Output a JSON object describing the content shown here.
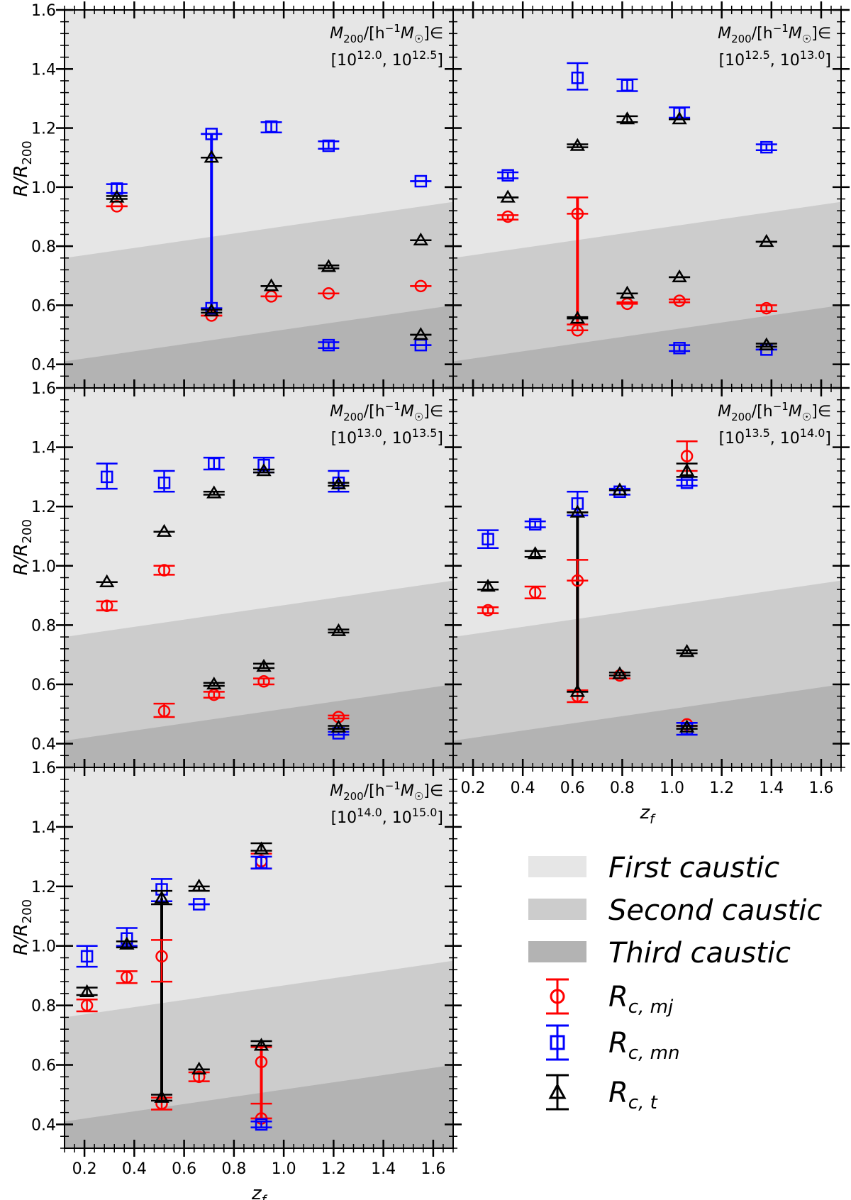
{
  "colors": {
    "first_caustic": "#e6e6e6",
    "second_caustic": "#cccccc",
    "third_caustic": "#b3b3b3",
    "mj": "#ff0000",
    "mn": "#0000ff",
    "t": "#000000"
  },
  "legend": {
    "entries": [
      {
        "label": "First caustic",
        "kind": "patch",
        "color": "#e6e6e6"
      },
      {
        "label": "Second caustic",
        "kind": "patch",
        "color": "#cccccc"
      },
      {
        "label": "Third caustic",
        "kind": "patch",
        "color": "#b3b3b3"
      },
      {
        "label_main": "R",
        "label_sub": "c, mj",
        "kind": "marker",
        "marker": "circle",
        "color": "#ff0000"
      },
      {
        "label_main": "R",
        "label_sub": "c, mn",
        "kind": "marker",
        "marker": "square",
        "color": "#0000ff"
      },
      {
        "label_main": "R",
        "label_sub": "c, t",
        "kind": "marker",
        "marker": "triangle",
        "color": "#000000"
      }
    ]
  },
  "chart_data": [
    {
      "type": "scatter",
      "ylabel_main": "R/R",
      "ylabel_sub": "200",
      "xlabel": "",
      "xlim": [
        0.12,
        1.68
      ],
      "ylim": [
        0.32,
        1.6
      ],
      "yticks": [
        "0.4",
        "0.6",
        "0.8",
        "1.0",
        "1.2",
        "1.4",
        "1.6"
      ],
      "xticks": [],
      "annotation_line1": "M200/[h⁻¹M☉]∈",
      "annotation_line2": "[10^12.0, 10^12.5]",
      "bands": {
        "first_upper": [
          0.76,
          0.95
        ],
        "second_upper": [
          0.41,
          0.6
        ]
      },
      "series": [
        {
          "key": "mj",
          "marker": "circle",
          "points": [
            [
              0.33,
              0.935,
              0.935,
              0.935
            ],
            [
              0.71,
              0.565,
              0.565,
              0.565
            ],
            [
              0.95,
              0.63,
              0.63,
              0.63
            ],
            [
              1.18,
              0.64,
              0.64,
              0.64
            ],
            [
              1.55,
              0.665,
              0.665,
              0.665
            ]
          ]
        },
        {
          "key": "mn",
          "marker": "square",
          "points": [
            [
              0.33,
              0.995,
              0.98,
              1.01
            ],
            [
              0.71,
              1.18,
              1.18,
              1.18
            ],
            [
              0.71,
              0.59,
              0.59,
              0.59
            ],
            [
              0.95,
              1.205,
              1.185,
              1.22
            ],
            [
              1.18,
              1.14,
              1.13,
              1.155
            ],
            [
              1.18,
              0.465,
              0.455,
              0.475
            ],
            [
              1.55,
              1.02,
              1.02,
              1.02
            ],
            [
              1.55,
              0.465,
              0.465,
              0.465
            ]
          ]
        },
        {
          "key": "t",
          "marker": "triangle",
          "points": [
            [
              0.33,
              0.965,
              0.96,
              0.97
            ],
            [
              0.71,
              1.1,
              1.1,
              1.1
            ],
            [
              0.71,
              0.58,
              0.575,
              0.585
            ],
            [
              0.95,
              0.665,
              0.665,
              0.665
            ],
            [
              1.18,
              0.73,
              0.725,
              0.735
            ],
            [
              1.55,
              0.82,
              0.82,
              0.82
            ],
            [
              1.55,
              0.5,
              0.5,
              0.5
            ]
          ]
        }
      ],
      "vlines": [
        {
          "key": "mn",
          "x": 0.71,
          "y0": 0.59,
          "y1": 1.18
        }
      ]
    },
    {
      "type": "scatter",
      "ylabel_main": "",
      "ylabel_sub": "",
      "xlabel": "",
      "xlim": [
        0.12,
        1.68
      ],
      "ylim": [
        0.32,
        1.6
      ],
      "yticks": [],
      "xticks": [],
      "annotation_line1": "M200/[h⁻¹M☉]∈",
      "annotation_line2": "[10^12.5, 10^13.0]",
      "bands": {
        "first_upper": [
          0.76,
          0.95
        ],
        "second_upper": [
          0.41,
          0.6
        ]
      },
      "series": [
        {
          "key": "mj",
          "marker": "circle",
          "points": [
            [
              0.34,
              0.9,
              0.89,
              0.905
            ],
            [
              0.62,
              0.91,
              0.91,
              0.965
            ],
            [
              0.62,
              0.515,
              0.515,
              0.535
            ],
            [
              0.82,
              0.605,
              0.605,
              0.61
            ],
            [
              1.03,
              0.615,
              0.61,
              0.62
            ],
            [
              1.38,
              0.59,
              0.58,
              0.6
            ]
          ]
        },
        {
          "key": "mn",
          "marker": "square",
          "points": [
            [
              0.34,
              1.04,
              1.03,
              1.05
            ],
            [
              0.62,
              1.37,
              1.33,
              1.42
            ],
            [
              0.82,
              1.345,
              1.325,
              1.365
            ],
            [
              1.03,
              1.25,
              1.235,
              1.27
            ],
            [
              1.03,
              0.455,
              0.445,
              0.465
            ],
            [
              1.38,
              1.135,
              1.125,
              1.145
            ],
            [
              1.38,
              0.45,
              0.45,
              0.45
            ]
          ]
        },
        {
          "key": "t",
          "marker": "triangle",
          "points": [
            [
              0.34,
              0.965,
              0.965,
              0.965
            ],
            [
              0.62,
              1.14,
              1.135,
              1.145
            ],
            [
              0.62,
              0.555,
              0.555,
              0.56
            ],
            [
              0.82,
              1.23,
              1.22,
              1.24
            ],
            [
              0.82,
              0.64,
              0.64,
              0.64
            ],
            [
              1.03,
              1.23,
              1.23,
              1.23
            ],
            [
              1.03,
              0.695,
              0.695,
              0.695
            ],
            [
              1.38,
              0.815,
              0.815,
              0.815
            ],
            [
              1.38,
              0.465,
              0.46,
              0.47
            ]
          ]
        }
      ],
      "vlines": [
        {
          "key": "mj",
          "x": 0.62,
          "y0": 0.535,
          "y1": 0.965
        }
      ]
    },
    {
      "type": "scatter",
      "ylabel_main": "R/R",
      "ylabel_sub": "200",
      "xlabel": "",
      "xlim": [
        0.12,
        1.68
      ],
      "ylim": [
        0.32,
        1.6
      ],
      "yticks": [
        "0.4",
        "0.6",
        "0.8",
        "1.0",
        "1.2",
        "1.4",
        "1.6"
      ],
      "xticks": [],
      "annotation_line1": "M200/[h⁻¹M☉]∈",
      "annotation_line2": "[10^13.0, 10^13.5]",
      "bands": {
        "first_upper": [
          0.76,
          0.95
        ],
        "second_upper": [
          0.41,
          0.6
        ]
      },
      "series": [
        {
          "key": "mj",
          "marker": "circle",
          "points": [
            [
              0.29,
              0.865,
              0.85,
              0.88
            ],
            [
              0.52,
              0.985,
              0.97,
              1.0
            ],
            [
              0.52,
              0.51,
              0.49,
              0.535
            ],
            [
              0.72,
              0.565,
              0.555,
              0.575
            ],
            [
              0.92,
              0.61,
              0.6,
              0.62
            ],
            [
              1.22,
              0.49,
              0.485,
              0.495
            ]
          ]
        },
        {
          "key": "mn",
          "marker": "square",
          "points": [
            [
              0.29,
              1.3,
              1.26,
              1.345
            ],
            [
              0.52,
              1.28,
              1.25,
              1.32
            ],
            [
              0.72,
              1.345,
              1.325,
              1.365
            ],
            [
              0.92,
              1.34,
              1.315,
              1.365
            ],
            [
              1.22,
              1.28,
              1.25,
              1.32
            ],
            [
              1.22,
              0.435,
              0.43,
              0.44
            ]
          ]
        },
        {
          "key": "t",
          "marker": "triangle",
          "points": [
            [
              0.29,
              0.945,
              0.945,
              0.945
            ],
            [
              0.52,
              1.115,
              1.115,
              1.115
            ],
            [
              0.72,
              1.245,
              1.24,
              1.25
            ],
            [
              0.72,
              0.6,
              0.595,
              0.605
            ],
            [
              0.92,
              1.32,
              1.315,
              1.325
            ],
            [
              0.92,
              0.66,
              0.655,
              0.67
            ],
            [
              1.22,
              1.275,
              1.27,
              1.28
            ],
            [
              1.22,
              0.78,
              0.775,
              0.785
            ],
            [
              1.22,
              0.455,
              0.45,
              0.46
            ]
          ]
        }
      ],
      "vlines": []
    },
    {
      "type": "scatter",
      "ylabel_main": "",
      "ylabel_sub": "",
      "xlabel": "z",
      "xlabel_sub": "f",
      "xlim": [
        0.12,
        1.68
      ],
      "ylim": [
        0.32,
        1.6
      ],
      "yticks": [],
      "xticks": [
        "0.2",
        "0.4",
        "0.6",
        "0.8",
        "1.0",
        "1.2",
        "1.4",
        "1.6"
      ],
      "annotation_line1": "M200/[h⁻¹M☉]∈",
      "annotation_line2": "[10^13.5, 10^14.0]",
      "bands": {
        "first_upper": [
          0.76,
          0.95
        ],
        "second_upper": [
          0.41,
          0.6
        ]
      },
      "series": [
        {
          "key": "mj",
          "marker": "circle",
          "points": [
            [
              0.26,
              0.85,
              0.84,
              0.86
            ],
            [
              0.45,
              0.91,
              0.89,
              0.93
            ],
            [
              0.62,
              0.95,
              0.95,
              1.02
            ],
            [
              0.62,
              0.56,
              0.54,
              0.58
            ],
            [
              0.79,
              0.63,
              0.62,
              0.64
            ],
            [
              1.06,
              1.37,
              1.32,
              1.42
            ],
            [
              1.06,
              0.465,
              0.46,
              0.47
            ]
          ]
        },
        {
          "key": "mn",
          "marker": "square",
          "points": [
            [
              0.26,
              1.09,
              1.06,
              1.12
            ],
            [
              0.45,
              1.14,
              1.13,
              1.15
            ],
            [
              0.62,
              1.21,
              1.17,
              1.25
            ],
            [
              0.79,
              1.25,
              1.24,
              1.26
            ],
            [
              1.06,
              1.28,
              1.27,
              1.29
            ],
            [
              1.06,
              0.45,
              0.43,
              0.47
            ]
          ]
        },
        {
          "key": "t",
          "marker": "triangle",
          "points": [
            [
              0.26,
              0.93,
              0.92,
              0.945
            ],
            [
              0.45,
              1.04,
              1.03,
              1.05
            ],
            [
              0.62,
              1.18,
              1.18,
              1.18
            ],
            [
              0.62,
              0.575,
              0.575,
              0.575
            ],
            [
              0.79,
              1.255,
              1.255,
              1.255
            ],
            [
              0.79,
              0.635,
              0.63,
              0.64
            ],
            [
              1.06,
              1.32,
              1.3,
              1.345
            ],
            [
              1.06,
              0.71,
              0.705,
              0.715
            ],
            [
              1.06,
              0.455,
              0.45,
              0.46
            ]
          ]
        }
      ],
      "vlines": [
        {
          "key": "mj",
          "x": 0.62,
          "y0": 0.58,
          "y1": 1.02
        },
        {
          "key": "t",
          "x": 0.62,
          "y0": 0.575,
          "y1": 1.18
        }
      ]
    },
    {
      "type": "scatter",
      "ylabel_main": "R/R",
      "ylabel_sub": "200",
      "xlabel": "z",
      "xlabel_sub": "f",
      "xlim": [
        0.12,
        1.68
      ],
      "ylim": [
        0.32,
        1.6
      ],
      "yticks": [
        "0.4",
        "0.6",
        "0.8",
        "1.0",
        "1.2",
        "1.4",
        "1.6"
      ],
      "xticks": [
        "0.2",
        "0.4",
        "0.6",
        "0.8",
        "1.0",
        "1.2",
        "1.4",
        "1.6"
      ],
      "annotation_line1": "M200/[h⁻¹M☉]∈",
      "annotation_line2": "[10^14.0, 10^15.0]",
      "bands": {
        "first_upper": [
          0.76,
          0.95
        ],
        "second_upper": [
          0.41,
          0.6
        ]
      },
      "series": [
        {
          "key": "mj",
          "marker": "circle",
          "points": [
            [
              0.21,
              0.8,
              0.78,
              0.82
            ],
            [
              0.37,
              0.895,
              0.875,
              0.915
            ],
            [
              0.51,
              0.965,
              0.88,
              1.02
            ],
            [
              0.51,
              0.47,
              0.45,
              0.49
            ],
            [
              0.66,
              0.56,
              0.545,
              0.575
            ],
            [
              0.91,
              1.285,
              1.26,
              1.31
            ],
            [
              0.91,
              0.61,
              0.47,
              0.66
            ],
            [
              0.91,
              0.42,
              0.42,
              0.42
            ]
          ]
        },
        {
          "key": "mn",
          "marker": "square",
          "points": [
            [
              0.21,
              0.965,
              0.93,
              1.0
            ],
            [
              0.37,
              1.025,
              1.0,
              1.06
            ],
            [
              0.51,
              1.19,
              1.15,
              1.225
            ],
            [
              0.66,
              1.14,
              1.14,
              1.14
            ],
            [
              0.91,
              1.28,
              1.26,
              1.3
            ],
            [
              0.91,
              0.4,
              0.39,
              0.41
            ]
          ]
        },
        {
          "key": "t",
          "marker": "triangle",
          "points": [
            [
              0.21,
              0.845,
              0.835,
              0.86
            ],
            [
              0.37,
              1.005,
              0.995,
              1.015
            ],
            [
              0.51,
              1.16,
              1.14,
              1.185
            ],
            [
              0.51,
              0.49,
              0.48,
              0.5
            ],
            [
              0.66,
              1.2,
              1.185,
              1.2
            ],
            [
              0.66,
              0.585,
              0.585,
              0.585
            ],
            [
              0.91,
              1.325,
              1.32,
              1.345
            ],
            [
              0.91,
              0.665,
              0.665,
              0.68
            ]
          ]
        }
      ],
      "vlines": [
        {
          "key": "t",
          "x": 0.51,
          "y0": 0.49,
          "y1": 1.16
        },
        {
          "key": "mj",
          "x": 0.91,
          "y0": 0.42,
          "y1": 0.66
        }
      ]
    }
  ]
}
